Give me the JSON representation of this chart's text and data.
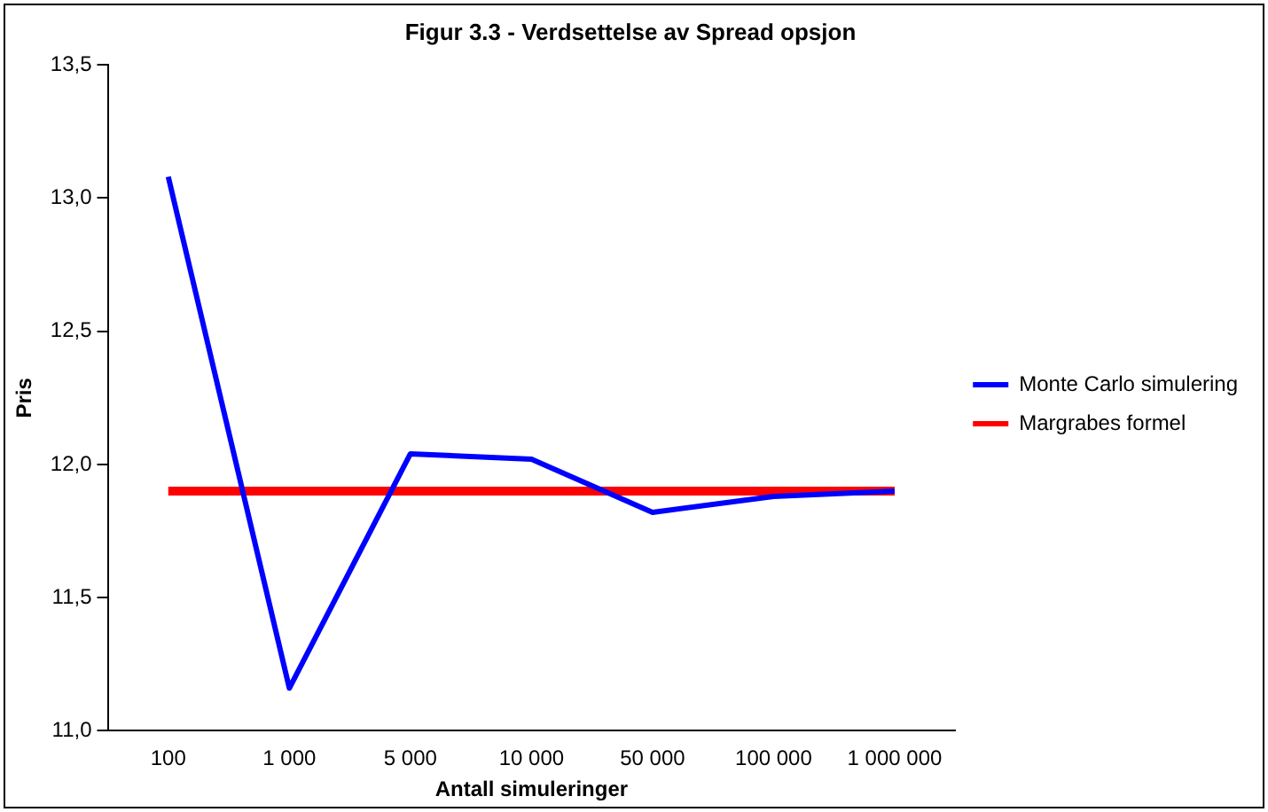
{
  "chart_data": {
    "type": "line",
    "title": "Figur 3.3 - Verdsettelse av Spread opsjon",
    "xlabel": "Antall simuleringer",
    "ylabel": "Pris",
    "categories": [
      "100",
      "1 000",
      "5 000",
      "10 000",
      "50 000",
      "100 000",
      "1 000 000"
    ],
    "series": [
      {
        "name": "Monte Carlo simulering",
        "color": "#0000ff",
        "values": [
          13.08,
          11.16,
          12.04,
          12.02,
          11.82,
          11.88,
          11.9
        ]
      },
      {
        "name": "Margrabes formel",
        "color": "#ff0000",
        "values": [
          11.9,
          11.9,
          11.9,
          11.9,
          11.9,
          11.9,
          11.9
        ]
      }
    ],
    "ylim": [
      11,
      13.5
    ],
    "yticks": [
      {
        "value": 11,
        "label": "11,0"
      },
      {
        "value": 11.5,
        "label": "11,5"
      },
      {
        "value": 12,
        "label": "12,0"
      },
      {
        "value": 12.5,
        "label": "12,5"
      },
      {
        "value": 13,
        "label": "13,0"
      },
      {
        "value": 13.5,
        "label": "13,5"
      }
    ],
    "grid": false,
    "legend": "right",
    "marker": "none",
    "line_style": "solid"
  }
}
